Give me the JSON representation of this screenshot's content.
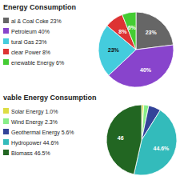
{
  "chart_data": [
    {
      "type": "pie",
      "title": "Energy Consumption",
      "categories": [
        "al & Coal Coke 23%",
        "Petroleum 40%",
        "tural Gas 23%",
        "clear Power 8%",
        "enewable Energy 6%"
      ],
      "values": [
        23,
        40,
        23,
        8,
        6
      ],
      "colors": [
        "#666666",
        "#8844cc",
        "#44ccdd",
        "#dd3333",
        "#44cc33"
      ],
      "data_labels": true,
      "value_labels": [
        "23%",
        "40%",
        "23%",
        "8%",
        "6%"
      ]
    },
    {
      "type": "pie",
      "title": "vable Energy Consumption",
      "categories": [
        "Solar Energy 1.0%",
        "Wind Energy 2.3%",
        "Geothermal Energy 5.6%",
        "Hydropower 44.6%",
        "Biomass 46.5%"
      ],
      "values": [
        1.0,
        2.3,
        5.6,
        44.6,
        46.5
      ],
      "colors": [
        "#dddd44",
        "#88ee88",
        "#334499",
        "#33bbbb",
        "#226622"
      ],
      "data_labels": true,
      "value_labels": [
        null,
        null,
        null,
        "44.6%",
        "46"
      ]
    }
  ]
}
